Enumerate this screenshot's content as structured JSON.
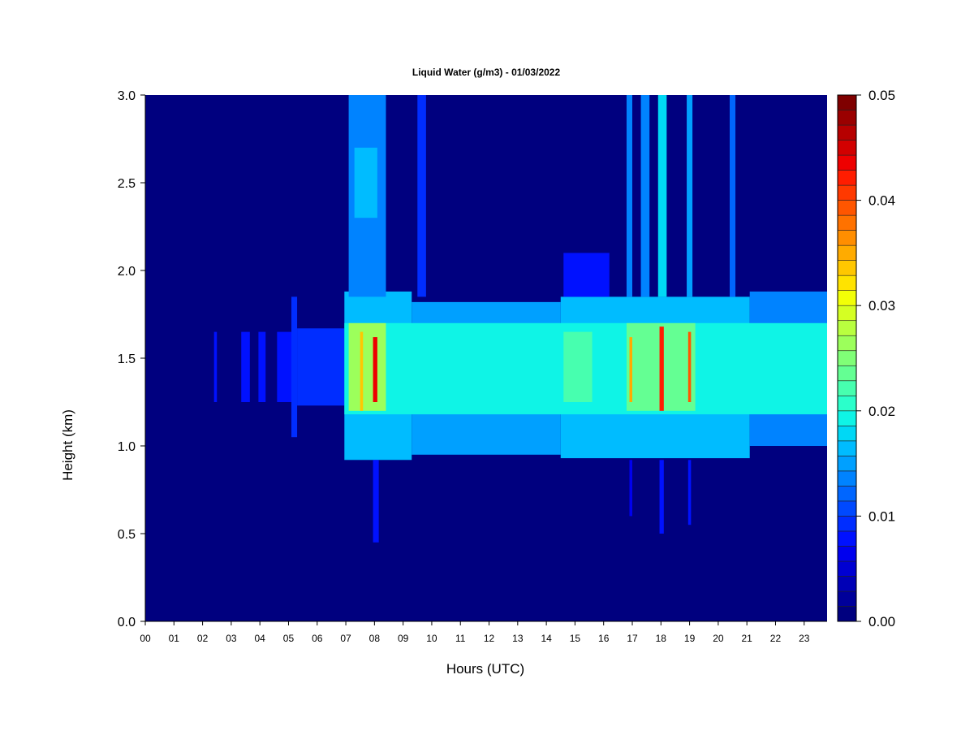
{
  "chart_data": {
    "type": "heatmap",
    "title": "Liquid Water (g/m3) - 01/03/2022",
    "xlabel": "Hours (UTC)",
    "ylabel": "Height (km)",
    "xlim": [
      0,
      23.8
    ],
    "ylim": [
      0,
      3.0
    ],
    "x_ticks": [
      0,
      1,
      2,
      3,
      4,
      5,
      6,
      7,
      8,
      9,
      10,
      11,
      12,
      13,
      14,
      15,
      16,
      17,
      18,
      19,
      20,
      21,
      22,
      23
    ],
    "x_tick_labels": [
      "00",
      "01",
      "02",
      "03",
      "04",
      "05",
      "06",
      "07",
      "08",
      "09",
      "10",
      "11",
      "12",
      "13",
      "14",
      "15",
      "16",
      "17",
      "18",
      "19",
      "20",
      "21",
      "22",
      "23"
    ],
    "y_ticks": [
      0.0,
      0.5,
      1.0,
      1.5,
      2.0,
      2.5,
      3.0
    ],
    "y_tick_labels": [
      "0.0",
      "0.5",
      "1.0",
      "1.5",
      "2.0",
      "2.5",
      "3.0"
    ],
    "colorbar": {
      "min": 0.0,
      "max": 0.05,
      "ticks": [
        0.0,
        0.01,
        0.02,
        0.03,
        0.04,
        0.05
      ],
      "tick_labels": [
        "0.00",
        "0.01",
        "0.02",
        "0.03",
        "0.04",
        "0.05"
      ],
      "colors": [
        "#00007f",
        "#00009a",
        "#0000b6",
        "#0000d2",
        "#0000ee",
        "#0011ff",
        "#002dff",
        "#0049ff",
        "#0066ff",
        "#0083ff",
        "#00a0ff",
        "#00bcff",
        "#00d8f5",
        "#0ff4e6",
        "#2bffcb",
        "#47ffaf",
        "#64ff93",
        "#80ff77",
        "#9cff5b",
        "#b9ff3f",
        "#d5ff23",
        "#f2ff07",
        "#ffe300",
        "#ffc700",
        "#ffab00",
        "#ff8e00",
        "#ff7200",
        "#ff5600",
        "#ff3900",
        "#ff1d00",
        "#ee0000",
        "#d20000",
        "#b60000",
        "#9a0000",
        "#7f0000"
      ]
    },
    "background_value": 0.0,
    "cloud_layers": [
      {
        "x_start": 2.4,
        "x_end": 2.5,
        "y_bottom": 1.25,
        "y_top": 1.65,
        "value": 0.008
      },
      {
        "x_start": 3.35,
        "x_end": 3.65,
        "y_bottom": 1.25,
        "y_top": 1.65,
        "value": 0.008
      },
      {
        "x_start": 3.95,
        "x_end": 4.2,
        "y_bottom": 1.25,
        "y_top": 1.65,
        "value": 0.008
      },
      {
        "x_start": 4.6,
        "x_end": 5.1,
        "y_bottom": 1.25,
        "y_top": 1.65,
        "value": 0.008
      },
      {
        "x_start": 5.1,
        "x_end": 5.3,
        "y_bottom": 1.05,
        "y_top": 1.85,
        "value": 0.009
      },
      {
        "x_start": 5.3,
        "x_end": 6.95,
        "y_bottom": 1.23,
        "y_top": 1.67,
        "value": 0.01
      },
      {
        "x_start": 6.95,
        "x_end": 9.3,
        "y_bottom": 0.92,
        "y_top": 1.88,
        "value": 0.016
      },
      {
        "x_start": 9.3,
        "x_end": 14.5,
        "y_bottom": 0.95,
        "y_top": 1.82,
        "value": 0.015
      },
      {
        "x_start": 14.5,
        "x_end": 21.1,
        "y_bottom": 0.93,
        "y_top": 1.85,
        "value": 0.016
      },
      {
        "x_start": 21.1,
        "x_end": 23.8,
        "y_bottom": 1.0,
        "y_top": 1.88,
        "value": 0.014
      },
      {
        "x_start": 6.95,
        "x_end": 23.8,
        "y_bottom": 1.18,
        "y_top": 1.7,
        "value": 0.019
      },
      {
        "x_start": 7.1,
        "x_end": 8.4,
        "y_bottom": 1.2,
        "y_top": 1.7,
        "value": 0.026
      },
      {
        "x_start": 14.6,
        "x_end": 15.6,
        "y_bottom": 1.25,
        "y_top": 1.65,
        "value": 0.022
      },
      {
        "x_start": 16.8,
        "x_end": 19.2,
        "y_bottom": 1.2,
        "y_top": 1.7,
        "value": 0.024
      },
      {
        "x_start": 7.1,
        "x_end": 8.4,
        "y_bottom": 1.85,
        "y_top": 3.0,
        "value": 0.013
      },
      {
        "x_start": 7.3,
        "x_end": 8.1,
        "y_bottom": 2.3,
        "y_top": 2.7,
        "value": 0.017
      },
      {
        "x_start": 9.5,
        "x_end": 9.8,
        "y_bottom": 1.85,
        "y_top": 3.0,
        "value": 0.01
      },
      {
        "x_start": 14.6,
        "x_end": 16.2,
        "y_bottom": 1.85,
        "y_top": 2.1,
        "value": 0.008
      },
      {
        "x_start": 16.8,
        "x_end": 17.0,
        "y_bottom": 1.85,
        "y_top": 3.0,
        "value": 0.013
      },
      {
        "x_start": 17.3,
        "x_end": 17.6,
        "y_bottom": 1.85,
        "y_top": 3.0,
        "value": 0.013
      },
      {
        "x_start": 17.9,
        "x_end": 18.2,
        "y_bottom": 1.85,
        "y_top": 3.0,
        "value": 0.018
      },
      {
        "x_start": 18.9,
        "x_end": 19.1,
        "y_bottom": 1.85,
        "y_top": 3.0,
        "value": 0.015
      },
      {
        "x_start": 20.4,
        "x_end": 20.6,
        "y_bottom": 1.85,
        "y_top": 3.0,
        "value": 0.012
      },
      {
        "x_start": 7.95,
        "x_end": 8.15,
        "y_bottom": 0.45,
        "y_top": 0.92,
        "value": 0.008
      },
      {
        "x_start": 16.9,
        "x_end": 17.0,
        "y_bottom": 0.6,
        "y_top": 0.92,
        "value": 0.007
      },
      {
        "x_start": 17.95,
        "x_end": 18.1,
        "y_bottom": 0.5,
        "y_top": 0.92,
        "value": 0.008
      },
      {
        "x_start": 18.95,
        "x_end": 19.05,
        "y_bottom": 0.55,
        "y_top": 0.92,
        "value": 0.008
      },
      {
        "x_start": 7.5,
        "x_end": 7.6,
        "y_bottom": 1.2,
        "y_top": 1.65,
        "value": 0.034
      },
      {
        "x_start": 7.95,
        "x_end": 8.1,
        "y_bottom": 1.25,
        "y_top": 1.62,
        "value": 0.043
      },
      {
        "x_start": 16.9,
        "x_end": 17.0,
        "y_bottom": 1.25,
        "y_top": 1.62,
        "value": 0.035
      },
      {
        "x_start": 17.95,
        "x_end": 18.1,
        "y_bottom": 1.2,
        "y_top": 1.68,
        "value": 0.042
      },
      {
        "x_start": 18.95,
        "x_end": 19.05,
        "y_bottom": 1.25,
        "y_top": 1.65,
        "value": 0.04
      }
    ]
  }
}
